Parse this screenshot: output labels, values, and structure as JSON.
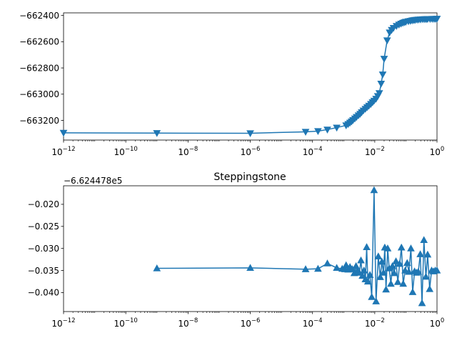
{
  "chart_data": [
    {
      "type": "line",
      "title": "",
      "xlabel": "",
      "ylabel": "",
      "xscale": "log",
      "xlim": [
        1e-12,
        1
      ],
      "ylim": [
        -663350,
        -662380
      ],
      "grid": false,
      "marker": "triangle-down",
      "color": "#1f77b4",
      "x_ticks": [
        {
          "base": "10",
          "exp": "−12"
        },
        {
          "base": "10",
          "exp": "−10"
        },
        {
          "base": "10",
          "exp": "−8"
        },
        {
          "base": "10",
          "exp": "−6"
        },
        {
          "base": "10",
          "exp": "−4"
        },
        {
          "base": "10",
          "exp": "−2"
        },
        {
          "base": "10",
          "exp": "0"
        }
      ],
      "y_ticks": [
        {
          "value": -662400,
          "label": "−662400"
        },
        {
          "value": -662600,
          "label": "−662600"
        },
        {
          "value": -662800,
          "label": "−662800"
        },
        {
          "value": -663000,
          "label": "−663000"
        },
        {
          "value": -663200,
          "label": "−663200"
        }
      ],
      "series": [
        {
          "x": [
            1e-12,
            1e-09,
            1e-06,
            6e-05,
            0.00015,
            0.0003,
            0.0006,
            0.0012,
            0.0014,
            0.0016,
            0.0018,
            0.002,
            0.0023,
            0.0026,
            0.003,
            0.0034,
            0.0038,
            0.0043,
            0.005,
            0.0057,
            0.0065,
            0.0075,
            0.0085,
            0.0095,
            0.011,
            0.0125,
            0.014,
            0.016,
            0.018,
            0.02,
            0.025,
            0.03,
            0.035,
            0.04,
            0.05,
            0.06,
            0.07,
            0.08,
            0.09,
            0.1,
            0.12,
            0.14,
            0.16,
            0.18,
            0.2,
            0.23,
            0.26,
            0.3,
            0.35,
            0.4,
            0.45,
            0.5,
            0.6,
            0.7,
            0.8,
            0.9,
            1.0
          ],
          "y": [
            -663295,
            -663297,
            -663298,
            -663287,
            -663282,
            -663270,
            -663255,
            -663238,
            -663228,
            -663218,
            -663208,
            -663198,
            -663186,
            -663174,
            -663162,
            -663150,
            -663138,
            -663125,
            -663112,
            -663100,
            -663088,
            -663075,
            -663062,
            -663050,
            -663035,
            -663015,
            -662992,
            -662920,
            -662850,
            -662730,
            -662590,
            -662530,
            -662510,
            -662495,
            -662480,
            -662470,
            -662462,
            -662456,
            -662452,
            -662448,
            -662444,
            -662441,
            -662438,
            -662436,
            -662434,
            -662432,
            -662431,
            -662430,
            -662429,
            -662428,
            -662428,
            -662427,
            -662427,
            -662426,
            -662426,
            -662426,
            -662425
          ]
        }
      ]
    },
    {
      "type": "line",
      "title": "Steppingstone",
      "offset_label": "−6.624478e5",
      "xlabel": "",
      "ylabel": "",
      "xscale": "log",
      "xlim": [
        1e-12,
        1
      ],
      "ylim": [
        -0.0443,
        -0.0158
      ],
      "grid": false,
      "marker": "triangle-up",
      "color": "#1f77b4",
      "x_ticks": [
        {
          "base": "10",
          "exp": "−12"
        },
        {
          "base": "10",
          "exp": "−10"
        },
        {
          "base": "10",
          "exp": "−8"
        },
        {
          "base": "10",
          "exp": "−6"
        },
        {
          "base": "10",
          "exp": "−4"
        },
        {
          "base": "10",
          "exp": "−2"
        },
        {
          "base": "10",
          "exp": "0"
        }
      ],
      "y_ticks": [
        {
          "value": -0.02,
          "label": "−0.020"
        },
        {
          "value": -0.025,
          "label": "−0.025"
        },
        {
          "value": -0.03,
          "label": "−0.030"
        },
        {
          "value": -0.035,
          "label": "−0.035"
        },
        {
          "value": -0.04,
          "label": "−0.040"
        }
      ],
      "series": [
        {
          "x": [
            1e-09,
            1e-06,
            6e-05,
            0.00015,
            0.0003,
            0.0006,
            0.0009,
            0.0011,
            0.0012,
            0.0014,
            0.0016,
            0.0019,
            0.0022,
            0.0025,
            0.0028,
            0.0032,
            0.0036,
            0.004,
            0.0045,
            0.005,
            0.0055,
            0.006,
            0.007,
            0.008,
            0.0095,
            0.011,
            0.013,
            0.015,
            0.017,
            0.019,
            0.021,
            0.023,
            0.026,
            0.029,
            0.033,
            0.037,
            0.042,
            0.048,
            0.055,
            0.063,
            0.072,
            0.082,
            0.095,
            0.11,
            0.125,
            0.145,
            0.165,
            0.19,
            0.22,
            0.25,
            0.29,
            0.33,
            0.38,
            0.44,
            0.5,
            0.58,
            0.67,
            0.77,
            0.88,
            1.0
          ],
          "y": [
            -0.0345,
            -0.0344,
            -0.0347,
            -0.0346,
            -0.0334,
            -0.0344,
            -0.0346,
            -0.0347,
            -0.0338,
            -0.0348,
            -0.0342,
            -0.0347,
            -0.0356,
            -0.034,
            -0.035,
            -0.0355,
            -0.0327,
            -0.0362,
            -0.035,
            -0.037,
            -0.0297,
            -0.0375,
            -0.036,
            -0.041,
            -0.0168,
            -0.042,
            -0.0318,
            -0.0365,
            -0.033,
            -0.0355,
            -0.0298,
            -0.0393,
            -0.03,
            -0.0345,
            -0.038,
            -0.034,
            -0.0356,
            -0.0329,
            -0.0376,
            -0.0335,
            -0.0298,
            -0.038,
            -0.035,
            -0.0333,
            -0.0353,
            -0.03,
            -0.0399,
            -0.0352,
            -0.0355,
            -0.0353,
            -0.0313,
            -0.0424,
            -0.0281,
            -0.0364,
            -0.0314,
            -0.0392,
            -0.035,
            -0.0352,
            -0.035,
            -0.035
          ]
        }
      ]
    }
  ]
}
